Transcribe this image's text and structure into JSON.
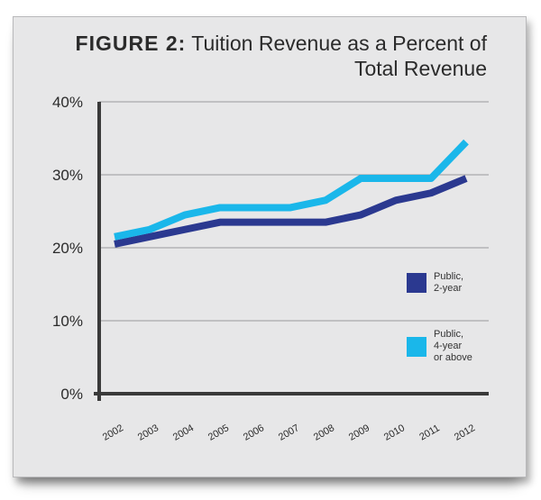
{
  "chart_data": {
    "type": "line",
    "title_prefix": "FIGURE 2:",
    "title_line1": "Tuition Revenue as a Percent of",
    "title_line2": "Total Revenue",
    "xlabel": "",
    "ylabel": "",
    "ylim": [
      0,
      40
    ],
    "yticks": [
      "0%",
      "10%",
      "20%",
      "30%",
      "40%"
    ],
    "x": [
      "2002",
      "2003",
      "2004",
      "2005",
      "2006",
      "2007",
      "2008",
      "2009",
      "2010",
      "2011",
      "2012"
    ],
    "grid": true,
    "legend_position": "right",
    "series": [
      {
        "name_line1": "Public,",
        "name_line2": "2-year",
        "name_line3": "",
        "color": "#2b3990",
        "values": [
          20.5,
          21.5,
          22.5,
          23.5,
          23.5,
          23.5,
          23.5,
          24.5,
          26.5,
          27.5,
          29.5
        ]
      },
      {
        "name_line1": "Public,",
        "name_line2": "4-year",
        "name_line3": "or above",
        "color": "#1ab7ea",
        "values": [
          21.5,
          22.5,
          24.5,
          25.5,
          25.5,
          25.5,
          26.5,
          29.5,
          29.5,
          29.5,
          34.5
        ]
      }
    ]
  }
}
